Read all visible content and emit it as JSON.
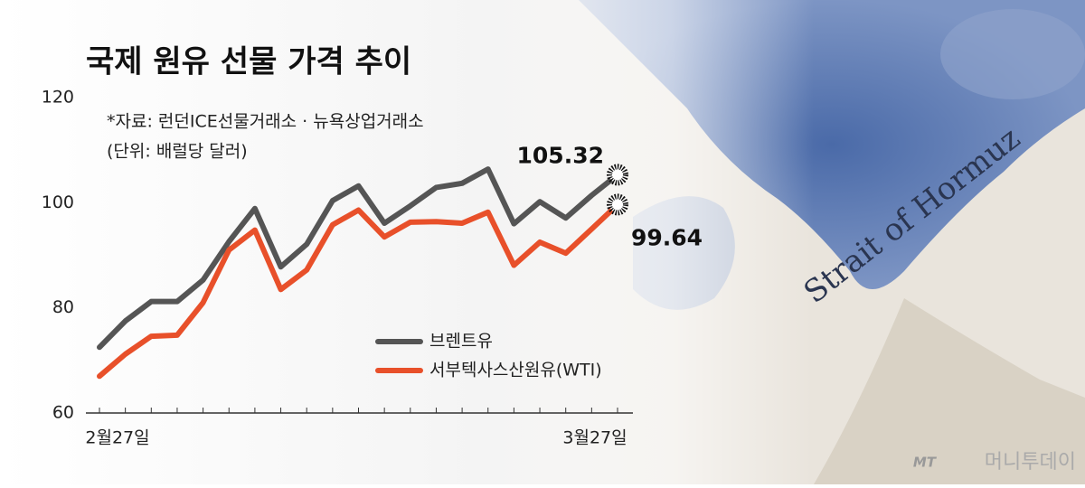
{
  "chart_data": {
    "type": "line",
    "title": "국제 원유 선물 가격 추이",
    "notes": [
      "*자료: 런던ICE선물거래소 · 뉴욕상업거래소",
      "(단위: 배럴당 달러)"
    ],
    "categories": [
      "2월27일",
      null,
      null,
      null,
      null,
      null,
      null,
      null,
      null,
      null,
      null,
      null,
      null,
      null,
      null,
      null,
      null,
      null,
      null,
      null,
      "3월27일"
    ],
    "series": [
      {
        "name": "브렌트유",
        "color": "#555555",
        "values": [
          72.5,
          77.5,
          81.2,
          81.2,
          85.3,
          92.6,
          98.9,
          87.8,
          92.1,
          100.4,
          103.2,
          96.1,
          99.4,
          102.9,
          103.7,
          106.4,
          96.0,
          100.2,
          97.1,
          101.4,
          105.32
        ]
      },
      {
        "name": "서부텍사스산원유(WTI)",
        "color": "#e8502a",
        "values": [
          67.0,
          71.2,
          74.6,
          74.8,
          81.0,
          91.0,
          94.8,
          83.5,
          87.2,
          95.8,
          98.6,
          93.5,
          96.3,
          96.4,
          96.1,
          98.2,
          88.1,
          92.5,
          90.4,
          95.0,
          99.64
        ]
      }
    ],
    "ylim": [
      60,
      120
    ],
    "yticks": [
      60,
      80,
      100,
      120
    ],
    "grid": false,
    "legend": "lower-right",
    "background_label": "Strait of Hormuz",
    "source_logo": "MT",
    "source_name": "머니투데이"
  }
}
